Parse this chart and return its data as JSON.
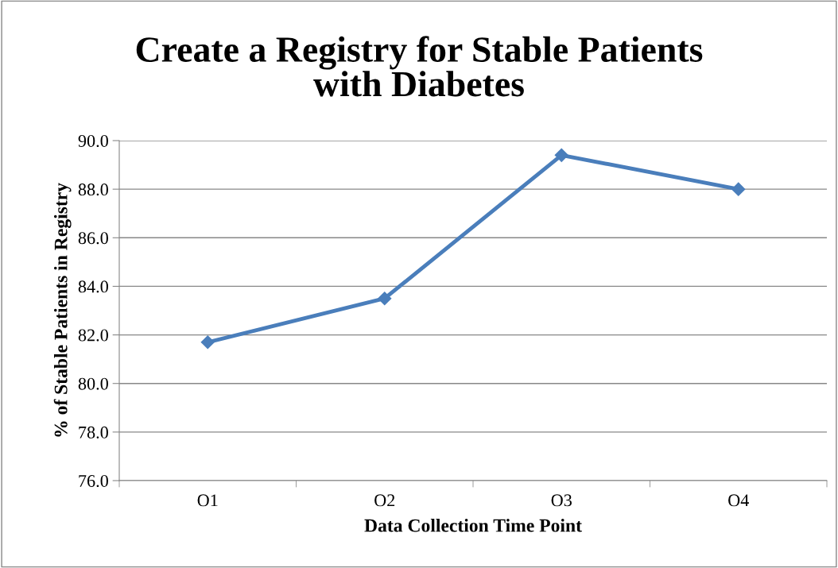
{
  "chart_data": {
    "type": "line",
    "title": "Create a Registry for Stable Patients\nwith Diabetes",
    "xlabel": "Data Collection Time Point",
    "ylabel": "% of Stable Patients in Registry",
    "categories": [
      "O1",
      "O2",
      "O3",
      "O4"
    ],
    "series": [
      {
        "color": "#4a7ebb",
        "values": [
          81.7,
          83.5,
          89.4,
          88.0
        ]
      }
    ],
    "ylim": [
      76,
      90
    ],
    "yticks": [
      {
        "value": 76,
        "label": "76.0"
      },
      {
        "value": 78,
        "label": "78.0"
      },
      {
        "value": 80,
        "label": "80.0"
      },
      {
        "value": 82,
        "label": "82.0"
      },
      {
        "value": 84,
        "label": "84.0"
      },
      {
        "value": 86,
        "label": "86.0"
      },
      {
        "value": 88,
        "label": "88.0"
      },
      {
        "value": 90,
        "label": "90.0"
      }
    ],
    "grid": "y",
    "marker": "diamond",
    "line_style": "solid",
    "legend": false
  }
}
